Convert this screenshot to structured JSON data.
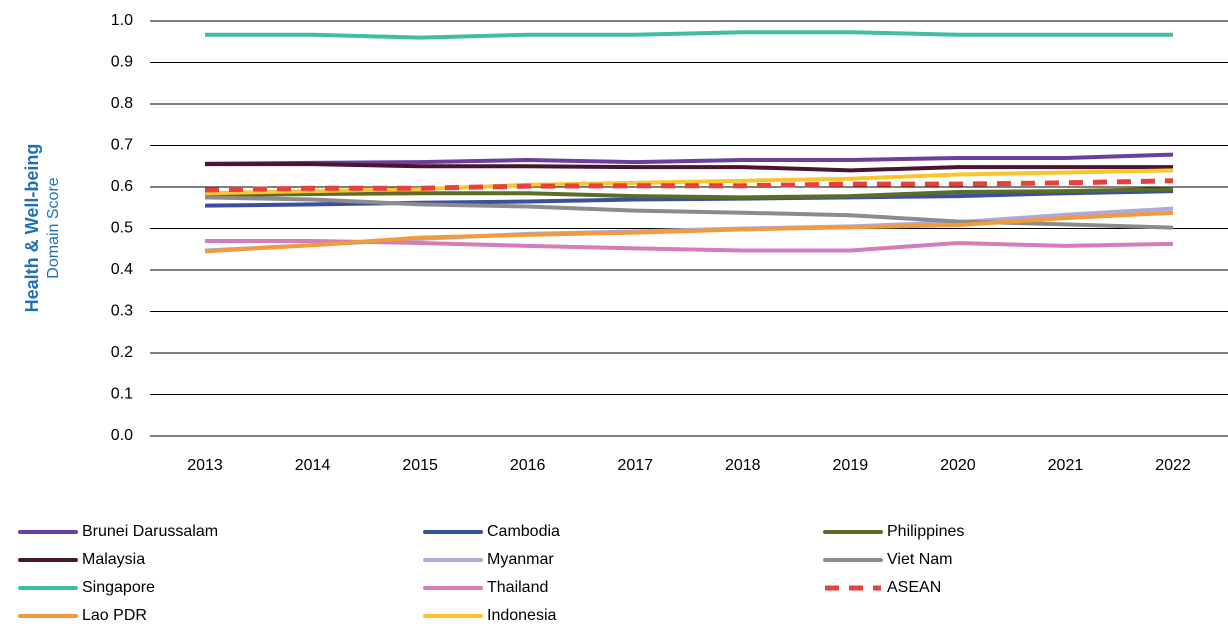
{
  "chart_data": {
    "type": "line",
    "y_label": [
      "Health & Well-being",
      "Domain Score"
    ],
    "categories": [
      "2013",
      "2014",
      "2015",
      "2016",
      "2017",
      "2018",
      "2019",
      "2020",
      "2021",
      "2022"
    ],
    "ylim": [
      0,
      1
    ],
    "yticks": [
      {
        "value": 0,
        "label": "0.0"
      },
      0.1,
      0.2,
      0.3,
      0.4,
      0.5,
      0.6,
      0.7,
      0.8,
      0.9,
      {
        "value": 1,
        "label": "1.0"
      }
    ],
    "grid": true,
    "series": [
      {
        "name": "Brunei Darussalam",
        "color": "#6b3fa0",
        "values": [
          0.656,
          0.658,
          0.66,
          0.665,
          0.66,
          0.665,
          0.665,
          0.67,
          0.67,
          0.678
        ]
      },
      {
        "name": "Cambodia",
        "color": "#3b4fa0",
        "values": [
          0.555,
          0.558,
          0.562,
          0.565,
          0.57,
          0.572,
          0.575,
          0.578,
          0.585,
          0.59
        ]
      },
      {
        "name": "Philippines",
        "color": "#5a6e2a",
        "values": [
          0.58,
          0.583,
          0.585,
          0.585,
          0.578,
          0.575,
          0.578,
          0.588,
          0.59,
          0.595
        ]
      },
      {
        "name": "Malaysia",
        "color": "#4a1530",
        "values": [
          0.655,
          0.655,
          0.65,
          0.65,
          0.648,
          0.648,
          0.64,
          0.648,
          0.648,
          0.648
        ]
      },
      {
        "name": "Myanmar",
        "color": "#b3a6d8",
        "values": [
          0.447,
          0.46,
          0.475,
          0.487,
          0.493,
          0.5,
          0.505,
          0.515,
          0.533,
          0.548
        ]
      },
      {
        "name": "Viet Nam",
        "color": "#8c8c8c",
        "values": [
          0.575,
          0.57,
          0.558,
          0.553,
          0.543,
          0.538,
          0.532,
          0.517,
          0.51,
          0.502
        ]
      },
      {
        "name": "Singapore",
        "color": "#3dbfa0",
        "values": [
          0.967,
          0.967,
          0.96,
          0.967,
          0.967,
          0.973,
          0.973,
          0.967,
          0.967,
          0.967
        ]
      },
      {
        "name": "Thailand",
        "color": "#d47db8",
        "values": [
          0.47,
          0.47,
          0.465,
          0.458,
          0.452,
          0.447,
          0.447,
          0.465,
          0.458,
          0.463
        ]
      },
      {
        "name": "ASEAN",
        "color": "#e8403a",
        "dash": true,
        "values": [
          0.593,
          0.597,
          0.597,
          0.602,
          0.603,
          0.603,
          0.607,
          0.607,
          0.61,
          0.615
        ]
      },
      {
        "name": "Lao PDR",
        "color": "#f39a3a",
        "values": [
          0.445,
          0.46,
          0.478,
          0.485,
          0.49,
          0.498,
          0.503,
          0.508,
          0.525,
          0.538
        ]
      },
      {
        "name": "Indonesia",
        "color": "#fbc52e",
        "values": [
          0.585,
          0.59,
          0.595,
          0.605,
          0.61,
          0.615,
          0.62,
          0.63,
          0.635,
          0.64
        ]
      }
    ]
  }
}
